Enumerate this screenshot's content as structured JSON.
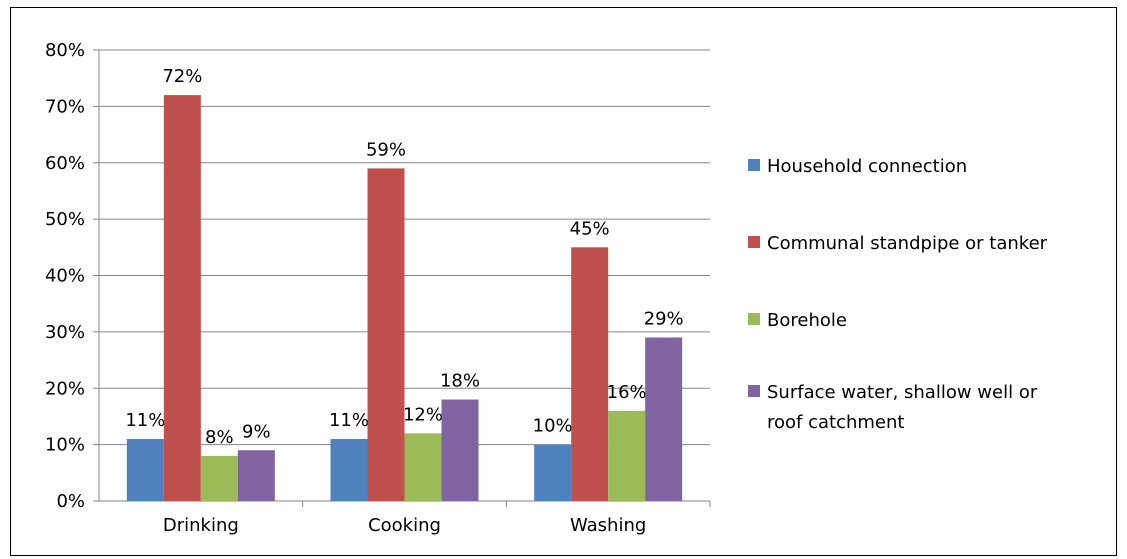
{
  "chart_data": {
    "type": "bar",
    "categories": [
      "Drinking",
      "Cooking",
      "Washing"
    ],
    "series": [
      {
        "name": "Household connection",
        "values": [
          11,
          11,
          10
        ],
        "labels": [
          "11%",
          "11%",
          "10%"
        ],
        "color": "#4f81bd"
      },
      {
        "name": "Communal standpipe or tanker",
        "values": [
          72,
          59,
          45
        ],
        "labels": [
          "72%",
          "59%",
          "45%"
        ],
        "color": "#c0504d"
      },
      {
        "name": "Borehole",
        "values": [
          8,
          12,
          16
        ],
        "labels": [
          "8%",
          "12%",
          "16%"
        ],
        "color": "#9bbb59"
      },
      {
        "name": "Surface water, shallow well or roof catchment",
        "legend_lines": [
          "Surface water, shallow well or",
          "roof catchment"
        ],
        "values": [
          9,
          18,
          29
        ],
        "labels": [
          "9%",
          "18%",
          "29%"
        ],
        "color": "#8064a2"
      }
    ],
    "ylim": [
      0,
      80
    ],
    "yticks": [
      0,
      10,
      20,
      30,
      40,
      50,
      60,
      70,
      80
    ],
    "ytick_labels": [
      "0%",
      "10%",
      "20%",
      "30%",
      "40%",
      "50%",
      "60%",
      "70%",
      "80%"
    ],
    "grid": true,
    "legend": "right",
    "title": "",
    "xlabel": "",
    "ylabel": ""
  }
}
